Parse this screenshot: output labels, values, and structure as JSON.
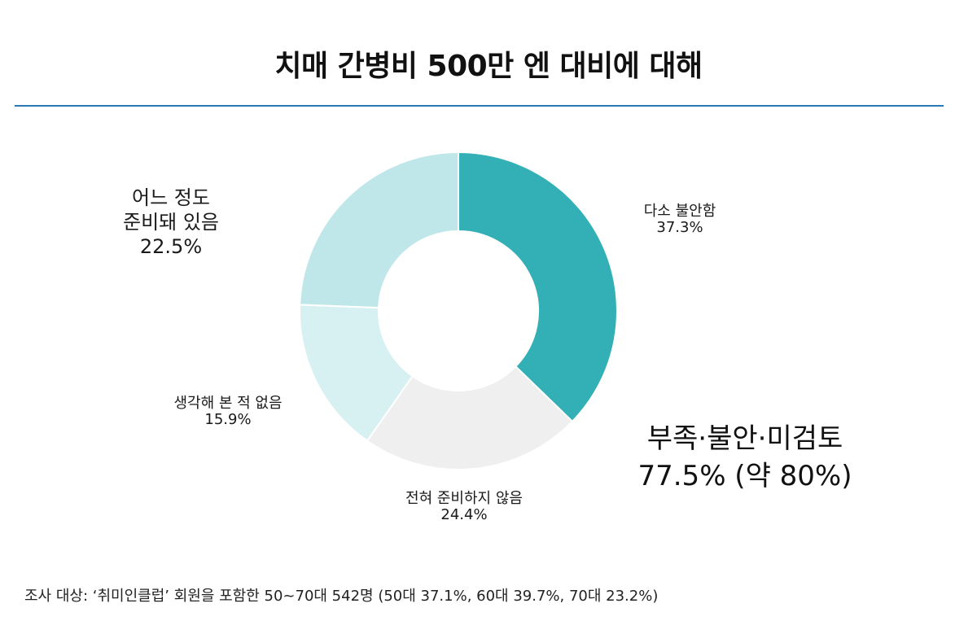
{
  "title": "치매 간병비 500만 엔 대비에 대해",
  "chart_data": {
    "type": "pie",
    "donut": true,
    "title": "치매 간병비 500만 엔 대비에 대해",
    "slices": [
      {
        "label": "다소 불안함",
        "value": 37.3,
        "value_label": "37.3%",
        "color": "#33b0b5"
      },
      {
        "label": "어느 정도\n준비돼 있음",
        "value": 22.5,
        "value_label": "22.5%",
        "color": "#efefef"
      },
      {
        "label": "생각해 본 적 없음",
        "value": 15.9,
        "value_label": "15.9%",
        "color": "#d7f0f2"
      },
      {
        "label": "전혀 준비하지 않음",
        "value": 24.4,
        "value_label": "24.4%",
        "color": "#bfe7ea"
      }
    ],
    "summary": {
      "label": "부족·불안·미검토",
      "value_text": "77.5%  (약 80%)"
    }
  },
  "footnote": "조사 대상: ‘취미인클럽’ 회원을 포함한 50~70대 542명  (50대 37.1%, 60대 39.7%, 70대 23.2%)"
}
